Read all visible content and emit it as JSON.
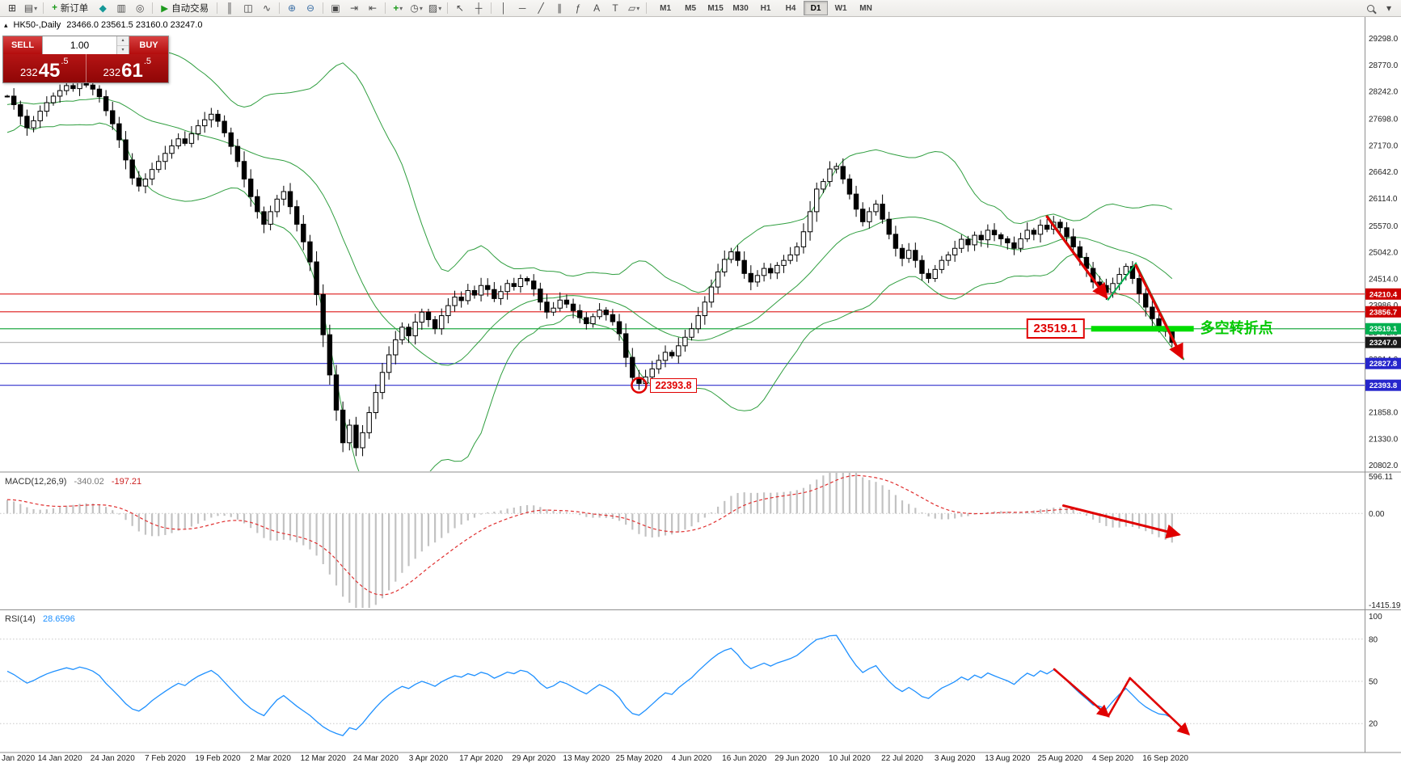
{
  "toolbar": {
    "new_order": "新订单",
    "autotrading": "自动交易",
    "timeframes": [
      "M1",
      "M5",
      "M15",
      "M30",
      "H1",
      "H4",
      "D1",
      "W1",
      "MN"
    ],
    "active_timeframe": "D1"
  },
  "icons": {
    "new-chart": "⊞",
    "profiles": "▤",
    "new-order": "+",
    "metaeditor": "◆",
    "market-watch": "▥",
    "alerts": "◎",
    "autotrading-play": "▶",
    "bars": "║",
    "candles": "◫",
    "line-chart": "∿",
    "zoom-in": "⊕",
    "zoom-out": "⊖",
    "tile-windows": "▣",
    "auto-scroll": "⇥",
    "chart-shift": "⇤",
    "indicators": "+",
    "periods": "◷",
    "templates": "▨",
    "cursor": "↖",
    "crosshair": "┼",
    "vertical-line": "│",
    "horizontal-line": "─",
    "trendline": "╱",
    "channel": "∥",
    "fibonacci": "ƒ",
    "text": "A",
    "label": "T",
    "shapes": "▱",
    "dropdown": "▾",
    "collapse": "▴"
  },
  "chart_header": {
    "symbol_period": "HK50-,Daily",
    "ohlc": "23466.0 23561.5 23160.0 23247.0"
  },
  "one_click": {
    "sell_label": "SELL",
    "buy_label": "BUY",
    "volume": "1.00",
    "sell_price": {
      "prefix": "232",
      "big": "45",
      "sup": ".5"
    },
    "buy_price": {
      "prefix": "232",
      "big": "61",
      "sup": ".5"
    }
  },
  "indicators_text": {
    "macd_name": "MACD(12,26,9)",
    "macd_value": "-340.02",
    "macd_signal": "-197.21",
    "rsi_name": "RSI(14)",
    "rsi_value": "28.6596"
  },
  "axis": {
    "macd_scale": {
      "max": 596.11,
      "min": -1415.19
    },
    "macd_labels": {
      "top": "596.11",
      "zero": "0.00",
      "bottom": "-1415.19"
    },
    "rsi_labels": [
      100,
      80,
      50,
      20
    ]
  },
  "levels": [
    {
      "label": "24210.4",
      "price": 24210.4,
      "line_color": "#e03030",
      "tag_bg": "#cc0000"
    },
    {
      "label": "23856.7",
      "price": 23856.7,
      "line_color": "#e03030",
      "tag_bg": "#cc0000"
    },
    {
      "label": "23519.1",
      "price": 23519.1,
      "line_color": "#22aa44",
      "tag_bg": "#00b050"
    },
    {
      "label": "23247.0",
      "price": 23247.0,
      "line_color": "#b8b8b8",
      "tag_bg": "#1a1a1a"
    },
    {
      "label": "22827.8",
      "price": 22827.8,
      "line_color": "#3030cc",
      "tag_bg": "#2626cc"
    },
    {
      "label": "22393.8",
      "price": 22393.8,
      "line_color": "#3030cc",
      "tag_bg": "#2626cc"
    }
  ],
  "annotations": {
    "crash_low": {
      "bar": 96,
      "price": 22393.8,
      "label": "22393.8"
    },
    "pivot": {
      "price": 23519.1,
      "label": "23519.1",
      "text": "多空转折点",
      "highlight_from_bar": 164.7,
      "highlight_to_bar": 180.3
    },
    "main_arrows": [
      {
        "from": [
          158,
          25750
        ],
        "to": [
          167,
          24150
        ]
      },
      {
        "from": [
          171.5,
          24780
        ],
        "to": [
          178.5,
          22950
        ]
      }
    ],
    "main_zigzag": [
      [
        158,
        25780
      ],
      [
        167.3,
        24100
      ],
      [
        171.5,
        24820
      ],
      [
        178.8,
        22900
      ]
    ],
    "macd_arrow": {
      "from": [
        160.5,
        120
      ],
      "to": [
        178,
        -320
      ]
    },
    "rsi_zigzag": [
      [
        159.1,
        58.6
      ],
      [
        167.3,
        25.3
      ],
      [
        170.6,
        52.3
      ],
      [
        179.5,
        12.6
      ]
    ]
  },
  "chart_data": {
    "type": "candlestick",
    "symbol": "HK50",
    "timeframe": "Daily",
    "ohlc_last": {
      "open": 23466.0,
      "high": 23561.5,
      "low": 23160.0,
      "close": 23247.0
    },
    "y_axis": {
      "max": 29726,
      "min": 20683,
      "labels": [
        29298.0,
        28770.0,
        28242.0,
        27698.0,
        27170.0,
        26642.0,
        26114.0,
        25570.0,
        25042.0,
        24514.0,
        23986.0,
        23442.0,
        22914.0,
        22386.0,
        21858.0,
        21330.0,
        20802.0
      ]
    },
    "x_labels": [
      {
        "text": "Jan 2020",
        "bar": 0
      },
      {
        "text": "14 Jan 2020",
        "bar": 8
      },
      {
        "text": "24 Jan 2020",
        "bar": 16
      },
      {
        "text": "7 Feb 2020",
        "bar": 24
      },
      {
        "text": "19 Feb 2020",
        "bar": 32
      },
      {
        "text": "2 Mar 2020",
        "bar": 40
      },
      {
        "text": "12 Mar 2020",
        "bar": 48
      },
      {
        "text": "24 Mar 2020",
        "bar": 56
      },
      {
        "text": "3 Apr 2020",
        "bar": 64
      },
      {
        "text": "17 Apr 2020",
        "bar": 72
      },
      {
        "text": "29 Apr 2020",
        "bar": 80
      },
      {
        "text": "13 May 2020",
        "bar": 88
      },
      {
        "text": "25 May 2020",
        "bar": 96
      },
      {
        "text": "4 Jun 2020",
        "bar": 104
      },
      {
        "text": "16 Jun 2020",
        "bar": 112
      },
      {
        "text": "29 Jun 2020",
        "bar": 120
      },
      {
        "text": "10 Jul 2020",
        "bar": 128
      },
      {
        "text": "22 Jul 2020",
        "bar": 136
      },
      {
        "text": "3 Aug 2020",
        "bar": 144
      },
      {
        "text": "13 Aug 2020",
        "bar": 152
      },
      {
        "text": "25 Aug 2020",
        "bar": 160
      },
      {
        "text": "4 Sep 2020",
        "bar": 168
      },
      {
        "text": "16 Sep 2020",
        "bar": 176
      }
    ],
    "closes_warmup": [
      27200,
      27600,
      27350,
      27750,
      28000,
      27550,
      27900,
      28200,
      27700,
      28100,
      28350,
      27900,
      28250,
      28050,
      27800,
      28150,
      28400,
      28000,
      28300,
      28150
    ],
    "closes": [
      28150,
      27980,
      27750,
      27520,
      27660,
      27850,
      28020,
      28150,
      28260,
      28360,
      28300,
      28420,
      28370,
      28290,
      28140,
      27860,
      27600,
      27280,
      26880,
      26520,
      26360,
      26500,
      26690,
      26850,
      27010,
      27160,
      27300,
      27210,
      27400,
      27560,
      27680,
      27790,
      27650,
      27420,
      27150,
      26850,
      26500,
      26150,
      25850,
      25600,
      25850,
      26100,
      26250,
      25950,
      25600,
      25250,
      24850,
      24200,
      23400,
      22600,
      21900,
      21250,
      21600,
      21150,
      21450,
      21850,
      22250,
      22650,
      23000,
      23300,
      23550,
      23380,
      23650,
      23850,
      23700,
      23520,
      23780,
      23980,
      24150,
      24080,
      24280,
      24190,
      24380,
      24300,
      24120,
      24260,
      24420,
      24360,
      24520,
      24470,
      24310,
      24050,
      23850,
      23930,
      24090,
      24010,
      23880,
      23740,
      23620,
      23760,
      23890,
      23800,
      23660,
      23420,
      22950,
      22550,
      22430,
      22560,
      22720,
      22890,
      23050,
      22980,
      23180,
      23350,
      23520,
      23780,
      24050,
      24350,
      24650,
      24900,
      25050,
      24880,
      24620,
      24450,
      24580,
      24720,
      24630,
      24780,
      24880,
      24990,
      25150,
      25450,
      25850,
      26300,
      26450,
      26700,
      26750,
      26500,
      26200,
      25900,
      25650,
      25850,
      26000,
      25700,
      25400,
      25120,
      24920,
      25080,
      24880,
      24620,
      24520,
      24700,
      24880,
      24990,
      25120,
      25300,
      25190,
      25380,
      25290,
      25480,
      25390,
      25310,
      25230,
      25120,
      25310,
      25480,
      25400,
      25580,
      25500,
      25640,
      25530,
      25350,
      25150,
      24940,
      24720,
      24450,
      24380,
      24240,
      24420,
      24600,
      24760,
      24520,
      24220,
      23950,
      23720,
      23520,
      23466,
      23247
    ],
    "indicators": {
      "bollinger": {
        "period": 20,
        "deviation": 2
      },
      "macd": {
        "fast": 12,
        "slow": 26,
        "signal": 9
      },
      "rsi": {
        "period": 14,
        "levels": [
          80,
          50,
          20
        ]
      }
    }
  }
}
